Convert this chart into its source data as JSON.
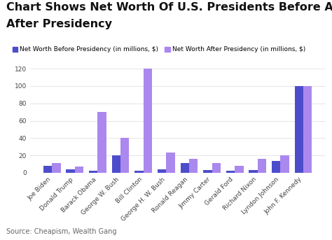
{
  "title_line1": "Chart Shows Net Worth Of U.S. Presidents Before And",
  "title_line2": "After Presidency",
  "categories": [
    "Joe Biden",
    "Donald Trump",
    "Barack Obama",
    "George W. Bush",
    "Bill Clinton",
    "George H. W. Bush",
    "Ronald Reagan",
    "Jimmy Carter",
    "Gerald Ford",
    "Richard Nixon",
    "Lyndon Johnson",
    "John F. Kennedy"
  ],
  "before": [
    8,
    4,
    2,
    20,
    2,
    4,
    11,
    3,
    2,
    3,
    14,
    100
  ],
  "after": [
    11,
    7,
    70,
    40,
    120,
    23,
    16,
    11,
    8,
    16,
    20,
    100
  ],
  "color_before": "#4d4dcc",
  "color_after": "#aa88ee",
  "legend_before": "Net Worth Before Presidency (in millions, $)",
  "legend_after": "Net Worth After Presidency (in millions, $)",
  "ylim": [
    0,
    130
  ],
  "yticks": [
    0,
    20,
    40,
    60,
    80,
    100,
    120
  ],
  "source": "Source: Cheapism, Wealth Gang",
  "bg_color": "#ffffff",
  "title_fontsize": 11.5,
  "tick_fontsize": 6.5,
  "legend_fontsize": 6.5,
  "source_fontsize": 7
}
